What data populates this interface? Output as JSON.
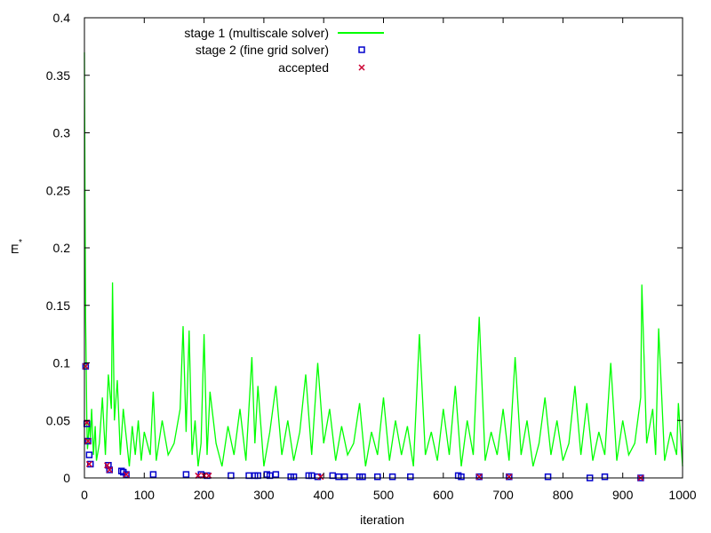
{
  "chart_data": {
    "type": "scatter",
    "xlabel": "iteration",
    "ylabel": "E",
    "ylabel_superscript": "*",
    "xlim": [
      0,
      1000
    ],
    "ylim": [
      0,
      0.4
    ],
    "xticks": [
      0,
      100,
      200,
      300,
      400,
      500,
      600,
      700,
      800,
      900,
      1000
    ],
    "yticks": [
      0,
      0.05,
      0.1,
      0.15,
      0.2,
      0.25,
      0.3,
      0.35,
      0.4
    ],
    "ytick_labels": [
      "0",
      "0.05",
      "0.1",
      "0.15",
      "0.2",
      "0.25",
      "0.3",
      "0.35",
      "0.4"
    ],
    "grid": false,
    "legend_position": "top-center",
    "colors": {
      "stage1": "#00ff00",
      "stage2": "#0000cc",
      "accepted": "#cc0033",
      "axis": "#000000"
    },
    "series": [
      {
        "name": "stage 1 (multiscale solver)",
        "style": "line",
        "x": [
          0,
          1,
          2,
          3,
          4,
          5,
          6,
          8,
          10,
          12,
          15,
          18,
          20,
          25,
          30,
          35,
          40,
          45,
          47,
          50,
          55,
          60,
          65,
          70,
          75,
          80,
          85,
          90,
          95,
          100,
          110,
          115,
          120,
          130,
          140,
          150,
          160,
          165,
          170,
          175,
          180,
          185,
          190,
          195,
          200,
          205,
          210,
          220,
          230,
          240,
          250,
          260,
          270,
          280,
          285,
          290,
          300,
          310,
          320,
          330,
          340,
          350,
          360,
          370,
          380,
          390,
          400,
          410,
          420,
          430,
          440,
          450,
          460,
          470,
          480,
          490,
          500,
          510,
          520,
          530,
          540,
          550,
          560,
          570,
          580,
          590,
          600,
          610,
          620,
          630,
          640,
          650,
          660,
          670,
          680,
          690,
          700,
          710,
          720,
          730,
          740,
          750,
          760,
          770,
          780,
          790,
          800,
          810,
          820,
          830,
          840,
          850,
          860,
          870,
          880,
          890,
          900,
          910,
          920,
          930,
          932,
          940,
          950,
          955,
          960,
          970,
          980,
          990,
          993,
          1000
        ],
        "y": [
          0.37,
          0.235,
          0.14,
          0.098,
          0.048,
          0.025,
          0.03,
          0.05,
          0.035,
          0.06,
          0.02,
          0.045,
          0.015,
          0.03,
          0.07,
          0.02,
          0.09,
          0.06,
          0.17,
          0.05,
          0.085,
          0.02,
          0.06,
          0.035,
          0.01,
          0.045,
          0.02,
          0.05,
          0.015,
          0.04,
          0.02,
          0.075,
          0.015,
          0.05,
          0.02,
          0.03,
          0.06,
          0.132,
          0.04,
          0.128,
          0.02,
          0.05,
          0.01,
          0.03,
          0.125,
          0.02,
          0.075,
          0.03,
          0.01,
          0.045,
          0.02,
          0.06,
          0.015,
          0.105,
          0.03,
          0.08,
          0.01,
          0.04,
          0.08,
          0.02,
          0.05,
          0.015,
          0.04,
          0.09,
          0.02,
          0.1,
          0.03,
          0.06,
          0.015,
          0.045,
          0.02,
          0.03,
          0.065,
          0.01,
          0.04,
          0.02,
          0.07,
          0.015,
          0.05,
          0.02,
          0.045,
          0.01,
          0.125,
          0.02,
          0.04,
          0.015,
          0.06,
          0.02,
          0.08,
          0.01,
          0.05,
          0.02,
          0.14,
          0.015,
          0.04,
          0.02,
          0.06,
          0.015,
          0.105,
          0.02,
          0.05,
          0.01,
          0.03,
          0.07,
          0.02,
          0.05,
          0.015,
          0.03,
          0.08,
          0.02,
          0.065,
          0.015,
          0.04,
          0.02,
          0.1,
          0.015,
          0.05,
          0.02,
          0.03,
          0.07,
          0.168,
          0.03,
          0.06,
          0.02,
          0.13,
          0.015,
          0.04,
          0.02,
          0.065,
          0.01
        ]
      },
      {
        "name": "stage 2 (fine grid solver)",
        "style": "marker-square",
        "x": [
          2,
          4,
          6,
          8,
          10,
          40,
          42,
          62,
          65,
          70,
          115,
          170,
          195,
          205,
          245,
          275,
          285,
          290,
          305,
          310,
          320,
          345,
          350,
          375,
          380,
          390,
          415,
          425,
          435,
          460,
          465,
          490,
          515,
          545,
          625,
          630,
          660,
          710,
          775,
          845,
          870,
          930
        ],
        "y": [
          0.097,
          0.047,
          0.032,
          0.02,
          0.012,
          0.011,
          0.007,
          0.006,
          0.005,
          0.003,
          0.003,
          0.003,
          0.003,
          0.002,
          0.002,
          0.002,
          0.002,
          0.002,
          0.003,
          0.002,
          0.003,
          0.001,
          0.001,
          0.002,
          0.002,
          0.001,
          0.002,
          0.001,
          0.001,
          0.001,
          0.001,
          0.001,
          0.001,
          0.001,
          0.002,
          0.001,
          0.001,
          0.001,
          0.001,
          0.0,
          0.001,
          0.0
        ]
      },
      {
        "name": "accepted",
        "style": "marker-cross",
        "x": [
          2,
          4,
          6,
          8,
          38,
          42,
          70,
          190,
          200,
          208,
          395,
          660,
          710,
          930
        ],
        "y": [
          0.097,
          0.048,
          0.032,
          0.012,
          0.011,
          0.007,
          0.003,
          0.002,
          0.002,
          0.002,
          0.001,
          0.001,
          0.001,
          0.0
        ]
      }
    ]
  }
}
